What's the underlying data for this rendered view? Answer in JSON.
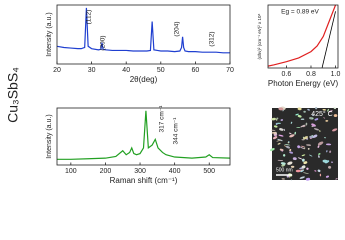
{
  "side_label": "Cu₃SbS₄",
  "chart_data": [
    {
      "type": "line",
      "x_label": "2θ(deg)",
      "y_label": "Intensity (a.u.)",
      "xlim": [
        20,
        70
      ],
      "ylim": [
        0,
        100
      ],
      "xticks": [
        20,
        30,
        40,
        50,
        60,
        70
      ],
      "annotations": [
        "(112)",
        "(200)",
        "(204)",
        "(312)"
      ],
      "series": [
        {
          "color": "#1f3fd0",
          "x": [
            20,
            22,
            24,
            26,
            27,
            28,
            28.5,
            29,
            30,
            32,
            32.7,
            33,
            33.3,
            34,
            36,
            38,
            40,
            42,
            44,
            46,
            47,
            47.5,
            48,
            49,
            50,
            52,
            54,
            55.5,
            56,
            56.3,
            56.6,
            57,
            58,
            60,
            62,
            64,
            66,
            68,
            70
          ],
          "values": [
            30,
            28,
            27,
            26,
            26,
            28,
            95,
            30,
            26,
            24,
            25,
            36,
            25,
            24,
            23,
            23,
            23,
            22,
            22,
            22,
            23,
            72,
            24,
            23,
            22,
            22,
            21,
            22,
            28,
            46,
            28,
            22,
            21,
            21,
            20,
            20,
            20,
            19,
            19
          ]
        }
      ]
    },
    {
      "type": "line",
      "x_label": "Photon Energy (eV)",
      "y_label": "(αhν)² (cm⁻¹ eV)² x 10⁸",
      "xlim": [
        0.45,
        1.02
      ],
      "ylim": [
        0,
        10
      ],
      "xticks": [
        0.6,
        0.8,
        {
          "value": 1.0,
          "label": "1.0"
        }
      ],
      "annotations": [
        "Eg = 0.89 eV"
      ],
      "series": [
        {
          "color": "#e02020",
          "x": [
            0.45,
            0.5,
            0.6,
            0.7,
            0.8,
            0.85,
            0.9,
            0.95,
            1.0
          ],
          "values": [
            0.3,
            0.5,
            1.0,
            1.6,
            2.6,
            3.5,
            5,
            7.5,
            10
          ]
        },
        {
          "color": "#000000",
          "x": [
            0.89,
            1.0
          ],
          "values": [
            0,
            9
          ]
        }
      ]
    },
    {
      "type": "line",
      "x_label": "Raman shift (cm⁻¹)",
      "y_label": "Intensity (a.u.)",
      "xlim": [
        60,
        560
      ],
      "ylim": [
        0,
        100
      ],
      "xticks": [
        100,
        200,
        300,
        400,
        500
      ],
      "annotations": [
        "317 cm⁻¹",
        "344 cm⁻¹"
      ],
      "series": [
        {
          "color": "#22a022",
          "x": [
            60,
            100,
            150,
            200,
            230,
            250,
            260,
            270,
            276,
            282,
            290,
            300,
            310,
            317,
            324,
            335,
            344,
            352,
            365,
            375,
            400,
            450,
            490,
            500,
            510,
            560
          ],
          "values": [
            10,
            10,
            11,
            12,
            15,
            25,
            18,
            22,
            30,
            20,
            18,
            20,
            30,
            95,
            30,
            35,
            45,
            30,
            22,
            18,
            14,
            12,
            14,
            18,
            13,
            12
          ]
        }
      ]
    }
  ],
  "image": {
    "label": "425° C",
    "scale_bar": "500 nm"
  }
}
